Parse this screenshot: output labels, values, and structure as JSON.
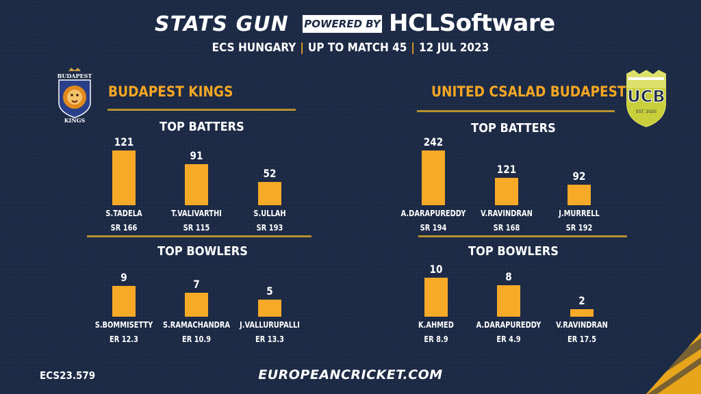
{
  "header": {
    "brand": "STATS GUN",
    "powered_by": "POWERED BY",
    "sponsor_hcl": "HCL",
    "sponsor_software": "Software",
    "subtitle_parts": [
      "ECS HUNGARY",
      "UP TO MATCH 45",
      "12 JUL 2023"
    ],
    "separator": "|"
  },
  "teams": [
    {
      "name": "BUDAPEST KINGS",
      "logo_text_top": "BUDAPEST",
      "logo_text_bottom": "KINGS",
      "batters_title": "TOP BATTERS",
      "bowlers_title": "TOP BOWLERS",
      "batters": [
        {
          "name": "S.TADELA",
          "value": "121",
          "stat": "SR 166"
        },
        {
          "name": "T.VALIVARTHI",
          "value": "91",
          "stat": "SR 115"
        },
        {
          "name": "S.ULLAH",
          "value": "52",
          "stat": "SR 193"
        }
      ],
      "bowlers": [
        {
          "name": "S.BOMMISETTY",
          "value": "9",
          "stat": "ER 12.3"
        },
        {
          "name": "S.RAMACHANDRA",
          "value": "7",
          "stat": "ER 10.9"
        },
        {
          "name": "J.VALLURUPALLI",
          "value": "5",
          "stat": "ER 13.3"
        }
      ]
    },
    {
      "name": "UNITED CSALAD BUDAPEST",
      "logo_text_top": "UCB",
      "logo_text_bottom": "EST. 2020",
      "batters_title": "TOP BATTERS",
      "bowlers_title": "TOP BOWLERS",
      "batters": [
        {
          "name": "A.DARAPUREDDY",
          "value": "242",
          "stat": "SR 194"
        },
        {
          "name": "V.RAVINDRAN",
          "value": "121",
          "stat": "SR 168"
        },
        {
          "name": "J.MURRELL",
          "value": "92",
          "stat": "SR 192"
        }
      ],
      "bowlers": [
        {
          "name": "K.AHMED",
          "value": "10",
          "stat": "ER 8.9"
        },
        {
          "name": "A.DARAPUREDDY",
          "value": "8",
          "stat": "ER 4.9"
        },
        {
          "name": "V.RAVINDRAN",
          "value": "2",
          "stat": "ER 17.5"
        }
      ]
    }
  ],
  "footer": {
    "id": "ECS23.579",
    "url": "EUROPEANCRICKET.COM"
  },
  "colors": {
    "background": "#1c2a45",
    "bar": "#f7a928",
    "accent": "#f5a623",
    "rule": "#b8912e"
  },
  "chart_data": [
    {
      "type": "bar",
      "title": "TOP BATTERS",
      "categories": [
        "S.TADELA",
        "T.VALIVARTHI",
        "S.ULLAH"
      ],
      "values": [
        121,
        91,
        52
      ]
    },
    {
      "type": "bar",
      "title": "TOP BOWLERS",
      "categories": [
        "S.BOMMISETTY",
        "S.RAMACHANDRA",
        "J.VALLURUPALLI"
      ],
      "values": [
        9,
        7,
        5
      ]
    },
    {
      "type": "bar",
      "title": "TOP BATTERS",
      "categories": [
        "A.DARAPUREDDY",
        "V.RAVINDRAN",
        "J.MURRELL"
      ],
      "values": [
        242,
        121,
        92
      ]
    },
    {
      "type": "bar",
      "title": "TOP BOWLERS",
      "categories": [
        "K.AHMED",
        "A.DARAPUREDDY",
        "V.RAVINDRAN"
      ],
      "values": [
        10,
        8,
        2
      ]
    }
  ]
}
